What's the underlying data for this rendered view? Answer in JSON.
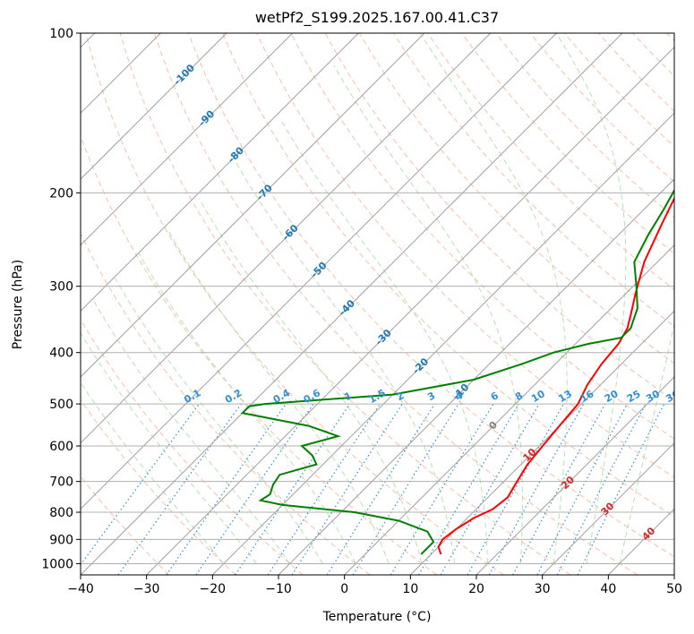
{
  "chart_data": {
    "type": "line",
    "title": "wetPf2_S199.2025.167.00.41.C37",
    "xlabel": "Temperature (°C)",
    "ylabel": "Pressure (hPa)",
    "xlim": [
      -40,
      50
    ],
    "ylim": [
      1050,
      100
    ],
    "y_scale": "log",
    "grid": true,
    "x_ticks": [
      -40,
      -30,
      -20,
      -10,
      0,
      10,
      20,
      30,
      40,
      50
    ],
    "y_ticks": [
      100,
      200,
      300,
      400,
      500,
      600,
      700,
      800,
      900,
      1000
    ],
    "isotherm_labels": [
      {
        "value": "-100",
        "T": -100,
        "p": 120
      },
      {
        "value": "-90",
        "T": -90,
        "p": 145
      },
      {
        "value": "-80",
        "T": -80,
        "p": 170
      },
      {
        "value": "-70",
        "T": -70,
        "p": 200
      },
      {
        "value": "-60",
        "T": -60,
        "p": 238
      },
      {
        "value": "-50",
        "T": -50,
        "p": 280
      },
      {
        "value": "-40",
        "T": -40,
        "p": 330
      },
      {
        "value": "-30",
        "T": -30,
        "p": 375
      },
      {
        "value": "-20",
        "T": -20,
        "p": 425
      },
      {
        "value": "-10",
        "T": -10,
        "p": 475
      },
      {
        "value": "0",
        "T": 0,
        "p": 550
      },
      {
        "value": "10",
        "T": 10,
        "p": 625
      },
      {
        "value": "20",
        "T": 20,
        "p": 705
      },
      {
        "value": "30",
        "T": 30,
        "p": 790
      },
      {
        "value": "40",
        "T": 40,
        "p": 880
      }
    ],
    "mixing_ratio_labels": [
      "0.1",
      "0.2",
      "0.4",
      "0.6",
      "1",
      "1.5",
      "2",
      "3",
      "4",
      "6",
      "8",
      "10",
      "13",
      "16",
      "20",
      "25",
      "30",
      "36"
    ],
    "mixing_ratio_label_x": [
      -23,
      -16.8,
      -9.5,
      -4.9,
      0.6,
      5,
      8.5,
      13.2,
      17.4,
      22.8,
      26.5,
      29.4,
      33.5,
      36.8,
      40.5,
      43.9,
      46.8,
      49.8
    ],
    "series": [
      {
        "name": "",
        "color": "#ff0000",
        "points": [
          {
            "p": 100,
            "t": 12.5
          },
          {
            "p": 110,
            "t": 10.5
          },
          {
            "p": 125,
            "t": 8.5
          },
          {
            "p": 140,
            "t": 6.0
          },
          {
            "p": 155,
            "t": 2.0
          },
          {
            "p": 165,
            "t": -3.5
          },
          {
            "p": 175,
            "t": -7.0
          },
          {
            "p": 185,
            "t": -8.5
          },
          {
            "p": 200,
            "t": -7.5
          },
          {
            "p": 230,
            "t": -5.0
          },
          {
            "p": 270,
            "t": -2.0
          },
          {
            "p": 310,
            "t": 1.5
          },
          {
            "p": 340,
            "t": 4.0
          },
          {
            "p": 360,
            "t": 5.5
          },
          {
            "p": 385,
            "t": 6.5
          },
          {
            "p": 420,
            "t": 7.0
          },
          {
            "p": 460,
            "t": 8.0
          },
          {
            "p": 500,
            "t": 9.5
          },
          {
            "p": 550,
            "t": 10.0
          },
          {
            "p": 600,
            "t": 10.5
          },
          {
            "p": 650,
            "t": 11.0
          },
          {
            "p": 700,
            "t": 12.0
          },
          {
            "p": 750,
            "t": 13.0
          },
          {
            "p": 790,
            "t": 12.5
          },
          {
            "p": 820,
            "t": 11.0
          },
          {
            "p": 860,
            "t": 10.0
          },
          {
            "p": 900,
            "t": 9.5
          },
          {
            "p": 930,
            "t": 10.0
          },
          {
            "p": 960,
            "t": 11.5
          }
        ]
      },
      {
        "name": "",
        "color": "#008000",
        "points": [
          {
            "p": 100,
            "t": 0.5
          },
          {
            "p": 115,
            "t": -3.0
          },
          {
            "p": 130,
            "t": -6.0
          },
          {
            "p": 145,
            "t": -6.5
          },
          {
            "p": 150,
            "t": -4.5
          },
          {
            "p": 160,
            "t": -3.0
          },
          {
            "p": 170,
            "t": -7.0
          },
          {
            "p": 180,
            "t": -9.0
          },
          {
            "p": 195,
            "t": -8.5
          },
          {
            "p": 215,
            "t": -7.0
          },
          {
            "p": 240,
            "t": -5.5
          },
          {
            "p": 270,
            "t": -3.5
          },
          {
            "p": 300,
            "t": 0.5
          },
          {
            "p": 330,
            "t": 4.0
          },
          {
            "p": 360,
            "t": 6.0
          },
          {
            "p": 375,
            "t": 6.0
          },
          {
            "p": 385,
            "t": 2.0
          },
          {
            "p": 400,
            "t": -2.0
          },
          {
            "p": 420,
            "t": -5.0
          },
          {
            "p": 450,
            "t": -10.0
          },
          {
            "p": 480,
            "t": -20.0
          },
          {
            "p": 500,
            "t": -38.0
          },
          {
            "p": 505,
            "t": -40.0
          },
          {
            "p": 520,
            "t": -40.0
          },
          {
            "p": 550,
            "t": -28.0
          },
          {
            "p": 575,
            "t": -22.0
          },
          {
            "p": 600,
            "t": -26.0
          },
          {
            "p": 625,
            "t": -23.0
          },
          {
            "p": 650,
            "t": -21.0
          },
          {
            "p": 680,
            "t": -25.0
          },
          {
            "p": 710,
            "t": -24.5
          },
          {
            "p": 740,
            "t": -23.5
          },
          {
            "p": 760,
            "t": -24.0
          },
          {
            "p": 775,
            "t": -20.0
          },
          {
            "p": 800,
            "t": -8.0
          },
          {
            "p": 830,
            "t": 0.0
          },
          {
            "p": 870,
            "t": 6.0
          },
          {
            "p": 910,
            "t": 8.5
          },
          {
            "p": 960,
            "t": 8.5
          }
        ]
      }
    ]
  }
}
